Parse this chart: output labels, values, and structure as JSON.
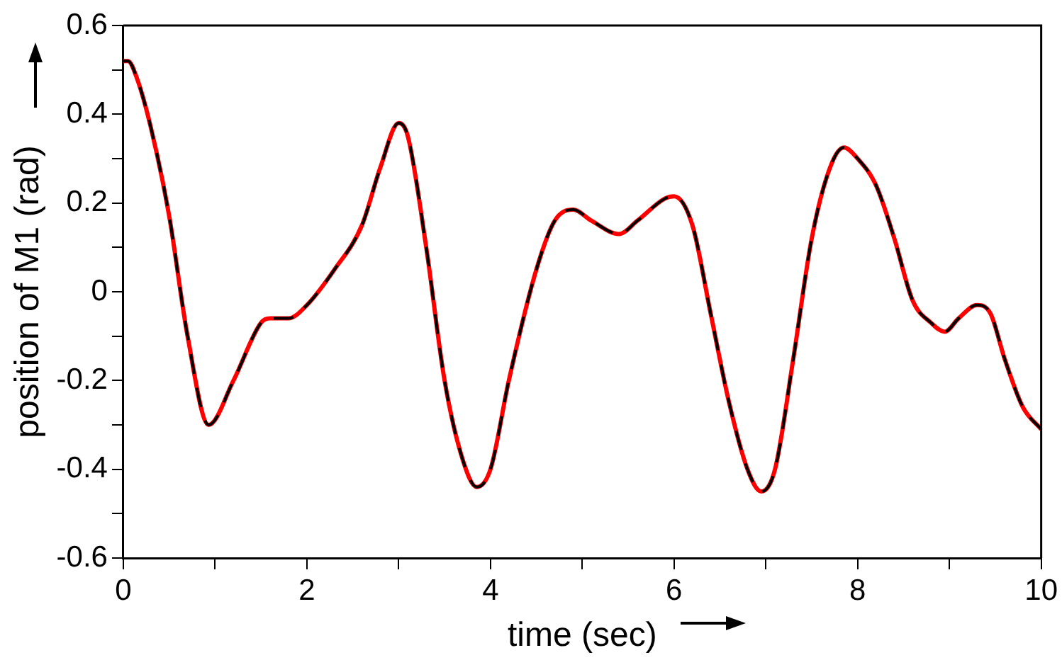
{
  "chart_data": {
    "type": "line",
    "xlabel": "time (sec)",
    "ylabel": "position of M1 (rad)",
    "xlim": [
      0,
      10
    ],
    "xticks": [
      0,
      {
        "value": 1,
        "label": null
      },
      2,
      {
        "value": 3,
        "label": null
      },
      4,
      {
        "value": 5,
        "label": null
      },
      6,
      {
        "value": 7,
        "label": null
      },
      8,
      {
        "value": 9,
        "label": null
      },
      10
    ],
    "ylim": [
      -0.6,
      0.6
    ],
    "yticks": [
      -0.6,
      {
        "value": -0.5,
        "label": null
      },
      -0.4,
      {
        "value": -0.3,
        "label": null
      },
      -0.2,
      {
        "value": -0.1,
        "label": null
      },
      0,
      {
        "value": 0.1,
        "label": null
      },
      0.2,
      {
        "value": 0.3,
        "label": null
      },
      0.4,
      {
        "value": 0.5,
        "label": null
      },
      0.6
    ],
    "grid": false,
    "legend": false,
    "marker": "none",
    "x": [
      0,
      0.05,
      0.15,
      0.3,
      0.5,
      0.7,
      0.93,
      1.2,
      1.5,
      1.6,
      1.8,
      2.0,
      2.3,
      2.6,
      2.8,
      3.0,
      3.1,
      3.3,
      3.5,
      3.7,
      3.85,
      4.0,
      4.2,
      4.5,
      4.7,
      4.9,
      5.1,
      5.4,
      5.6,
      5.9,
      6.0,
      6.2,
      6.4,
      6.6,
      6.8,
      6.95,
      7.1,
      7.3,
      7.5,
      7.7,
      7.85,
      8.0,
      8.2,
      8.4,
      8.6,
      8.8,
      8.95,
      9.1,
      9.3,
      9.45,
      9.6,
      9.8,
      10
    ],
    "series": [
      {
        "color": "#ff0000",
        "line_style": "solid",
        "values": [
          0.52,
          0.52,
          0.48,
          0.37,
          0.17,
          -0.1,
          -0.3,
          -0.2,
          -0.07,
          -0.06,
          -0.06,
          -0.03,
          0.05,
          0.15,
          0.28,
          0.38,
          0.35,
          0.1,
          -0.2,
          -0.38,
          -0.44,
          -0.4,
          -0.2,
          0.05,
          0.16,
          0.185,
          0.16,
          0.13,
          0.16,
          0.21,
          0.215,
          0.15,
          -0.05,
          -0.25,
          -0.4,
          -0.45,
          -0.4,
          -0.15,
          0.12,
          0.28,
          0.325,
          0.3,
          0.24,
          0.12,
          -0.02,
          -0.07,
          -0.09,
          -0.06,
          -0.03,
          -0.05,
          -0.15,
          -0.26,
          -0.31
        ]
      },
      {
        "color": "#000000",
        "line_style": "dashed",
        "values": [
          0.52,
          0.52,
          0.48,
          0.37,
          0.17,
          -0.1,
          -0.3,
          -0.2,
          -0.07,
          -0.06,
          -0.06,
          -0.03,
          0.05,
          0.15,
          0.28,
          0.38,
          0.35,
          0.1,
          -0.2,
          -0.38,
          -0.44,
          -0.4,
          -0.2,
          0.05,
          0.16,
          0.185,
          0.16,
          0.13,
          0.16,
          0.21,
          0.215,
          0.15,
          -0.05,
          -0.25,
          -0.4,
          -0.45,
          -0.4,
          -0.15,
          0.12,
          0.28,
          0.325,
          0.3,
          0.24,
          0.12,
          -0.02,
          -0.07,
          -0.09,
          -0.06,
          -0.03,
          -0.05,
          -0.15,
          -0.26,
          -0.31
        ]
      }
    ]
  }
}
